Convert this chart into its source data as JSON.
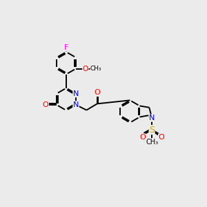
{
  "background_color": "#ebebeb",
  "bond_color": "#000000",
  "atom_colors": {
    "F": "#ff00ff",
    "O": "#ff0000",
    "N": "#0000ee",
    "S": "#ccaa00",
    "C": "#000000"
  },
  "figsize": [
    3.0,
    3.0
  ],
  "dpi": 100
}
